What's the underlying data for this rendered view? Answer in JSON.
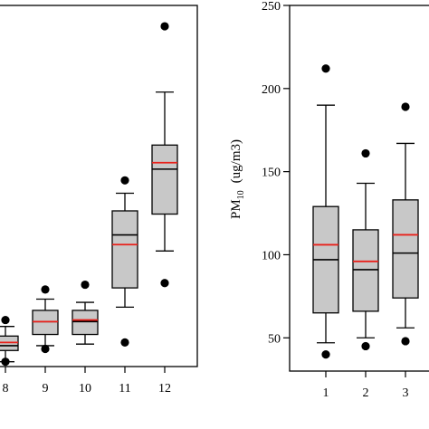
{
  "chart_data": [
    {
      "type": "box",
      "title": "",
      "xlabel": "",
      "ylabel": "",
      "categories": [
        "8",
        "9",
        "10",
        "11",
        "12"
      ],
      "ylim": [
        25,
        250
      ],
      "boxes": [
        {
          "category": "8",
          "whisker_low": 28,
          "q1": 35,
          "median": 38,
          "mean": 40,
          "q3": 44,
          "whisker_high": 50,
          "outliers": [
            28,
            54
          ]
        },
        {
          "category": "9",
          "whisker_low": 38,
          "q1": 45,
          "median": 53,
          "mean": 53,
          "q3": 60,
          "whisker_high": 67,
          "outliers": [
            36,
            73
          ]
        },
        {
          "category": "10",
          "whisker_low": 39,
          "q1": 45,
          "median": 53,
          "mean": 54,
          "q3": 60,
          "whisker_high": 65,
          "outliers": [
            76
          ]
        },
        {
          "category": "11",
          "whisker_low": 62,
          "q1": 74,
          "median": 107,
          "mean": 101,
          "q3": 122,
          "whisker_high": 133,
          "outliers": [
            40,
            141
          ]
        },
        {
          "category": "12",
          "whisker_low": 97,
          "q1": 120,
          "median": 148,
          "mean": 152,
          "q3": 163,
          "whisker_high": 196,
          "outliers": [
            77,
            237
          ]
        }
      ]
    },
    {
      "type": "box",
      "title": "",
      "xlabel": "",
      "ylabel": "PM",
      "ylabel_sub": "10",
      "ylabel_unit": "(ug/m3)",
      "categories": [
        "1",
        "2",
        "3"
      ],
      "ylim": [
        30,
        250
      ],
      "yticks": [
        "50",
        "100",
        "150",
        "200",
        "250"
      ],
      "boxes": [
        {
          "category": "1",
          "whisker_low": 47,
          "q1": 65,
          "median": 97,
          "mean": 106,
          "q3": 129,
          "whisker_high": 190,
          "outliers": [
            40,
            212
          ]
        },
        {
          "category": "2",
          "whisker_low": 50,
          "q1": 66,
          "median": 91,
          "mean": 96,
          "q3": 115,
          "whisker_high": 143,
          "outliers": [
            45,
            161
          ]
        },
        {
          "category": "3",
          "whisker_low": 56,
          "q1": 74,
          "median": 101,
          "mean": 112,
          "q3": 133,
          "whisker_high": 167,
          "outliers": [
            48,
            189
          ]
        }
      ]
    }
  ]
}
